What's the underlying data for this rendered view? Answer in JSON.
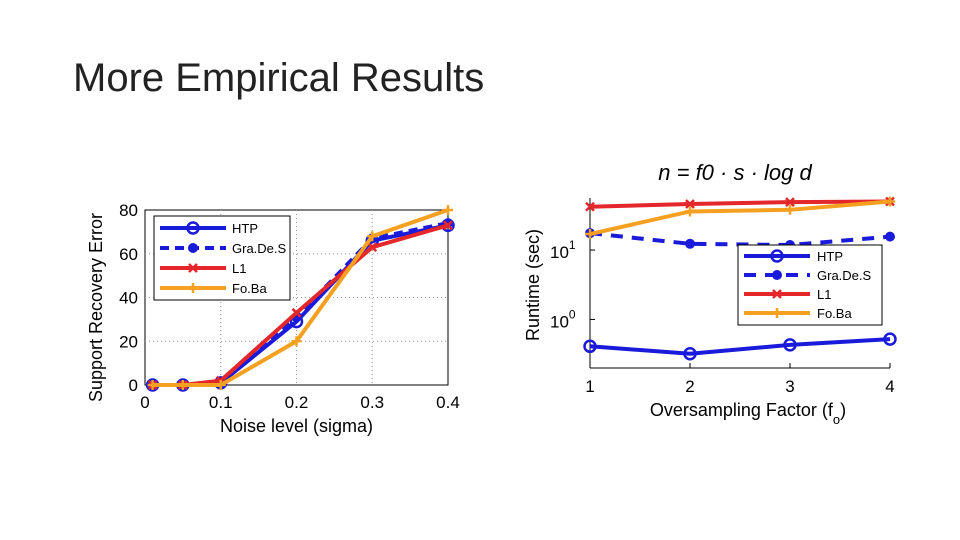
{
  "slide": {
    "title": "More Empirical Results"
  },
  "chart_data": [
    {
      "type": "line",
      "xlabel": "Noise level (sigma)",
      "ylabel": "Support Recovery Error",
      "xlim": [
        0,
        0.4
      ],
      "ylim": [
        0,
        80
      ],
      "xticks": [
        "0",
        "0.1",
        "0.2",
        "0.3",
        "0.4"
      ],
      "yticks": [
        "0",
        "20",
        "40",
        "60",
        "80"
      ],
      "grid": true,
      "legend": "top-left",
      "series": [
        {
          "name": "HTP",
          "color": "#1a1adb",
          "marker": "circle",
          "dash": false,
          "x": [
            0.01,
            0.05,
            0.1,
            0.2,
            0.3,
            0.4
          ],
          "y": [
            0,
            0,
            1,
            29,
            66,
            73
          ]
        },
        {
          "name": "Gra.De.S",
          "color": "#1a1adb",
          "marker": "dot",
          "dash": true,
          "x": [
            0.01,
            0.05,
            0.1,
            0.2,
            0.3,
            0.4
          ],
          "y": [
            0,
            0,
            1,
            31,
            67,
            74
          ]
        },
        {
          "name": "L1",
          "color": "#e3272a",
          "marker": "x",
          "dash": false,
          "x": [
            0.01,
            0.05,
            0.1,
            0.2,
            0.3,
            0.4
          ],
          "y": [
            0,
            0,
            2,
            33,
            63,
            73
          ]
        },
        {
          "name": "Fo.Ba",
          "color": "#f5a020",
          "marker": "plus",
          "dash": false,
          "x": [
            0.01,
            0.05,
            0.1,
            0.2,
            0.3,
            0.4
          ],
          "y": [
            0,
            0,
            0,
            20,
            68,
            80
          ]
        }
      ]
    },
    {
      "type": "line",
      "title": "n = f0 · s · log d",
      "xlabel": "Oversampling Factor (f",
      "xlabel_sub": "o",
      "xlabel_close": ")",
      "ylabel": "Runtime (sec)",
      "xlim": [
        1,
        4
      ],
      "ylog": true,
      "ylim_log10": [
        -0.7,
        1.75
      ],
      "xticks": [
        "1",
        "2",
        "3",
        "4"
      ],
      "yticks": [
        {
          "base": "10",
          "exp": "1",
          "value": 1
        },
        {
          "base": "10",
          "exp": "0",
          "value": 0
        }
      ],
      "grid": false,
      "legend": "center-right",
      "series": [
        {
          "name": "HTP",
          "color": "#1a1adb",
          "marker": "circle",
          "dash": false,
          "x": [
            1,
            2,
            3,
            4
          ],
          "y": [
            0.41,
            0.32,
            0.43,
            0.52
          ]
        },
        {
          "name": "Gra.De.S",
          "color": "#1a1adb",
          "marker": "dot",
          "dash": true,
          "x": [
            1,
            2,
            3,
            4
          ],
          "y": [
            17.5,
            12.3,
            11.8,
            15.6
          ]
        },
        {
          "name": "L1",
          "color": "#e3272a",
          "marker": "x",
          "dash": false,
          "x": [
            1,
            2,
            3,
            4
          ],
          "y": [
            42,
            46,
            49,
            50
          ]
        },
        {
          "name": "Fo.Ba",
          "color": "#f5a020",
          "marker": "plus",
          "dash": false,
          "x": [
            1,
            2,
            3,
            4
          ],
          "y": [
            17,
            36,
            38,
            50
          ]
        }
      ]
    }
  ]
}
